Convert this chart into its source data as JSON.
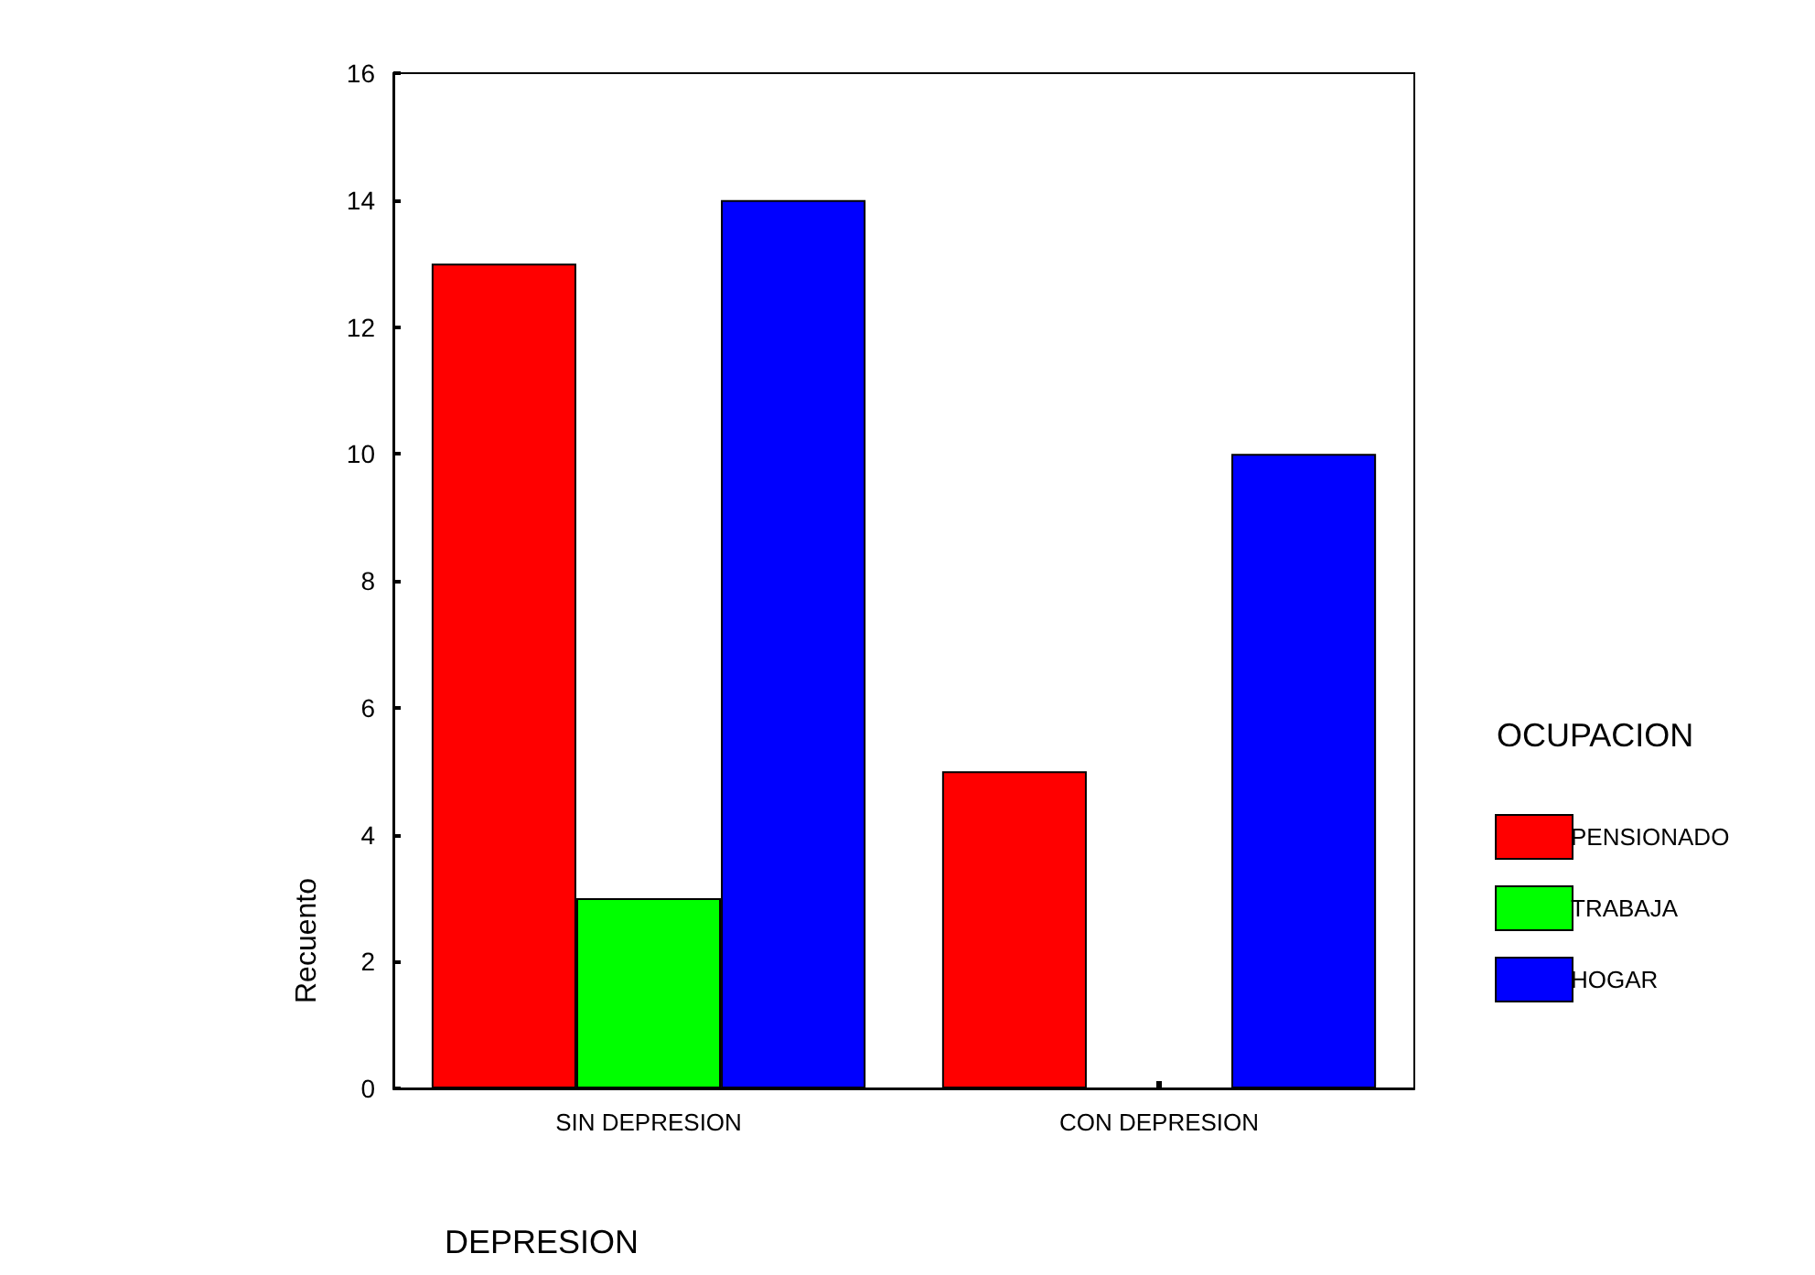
{
  "chart_data": {
    "type": "bar",
    "xlabel": "DEPRESION",
    "ylabel": "Recuento",
    "legend_title": "OCUPACION",
    "categories": [
      "SIN DEPRESION",
      "CON DEPRESION"
    ],
    "series": [
      {
        "name": "PENSIONADO",
        "color": "#ff0000",
        "values": [
          13,
          5
        ]
      },
      {
        "name": "TRABAJA",
        "color": "#00ff00",
        "values": [
          3,
          0
        ]
      },
      {
        "name": "HOGAR",
        "color": "#0000ff",
        "values": [
          14,
          10
        ]
      }
    ],
    "ylim": [
      0,
      16
    ],
    "yticks": [
      0,
      2,
      4,
      6,
      8,
      10,
      12,
      14,
      16
    ],
    "grid": false,
    "legend": "right"
  }
}
